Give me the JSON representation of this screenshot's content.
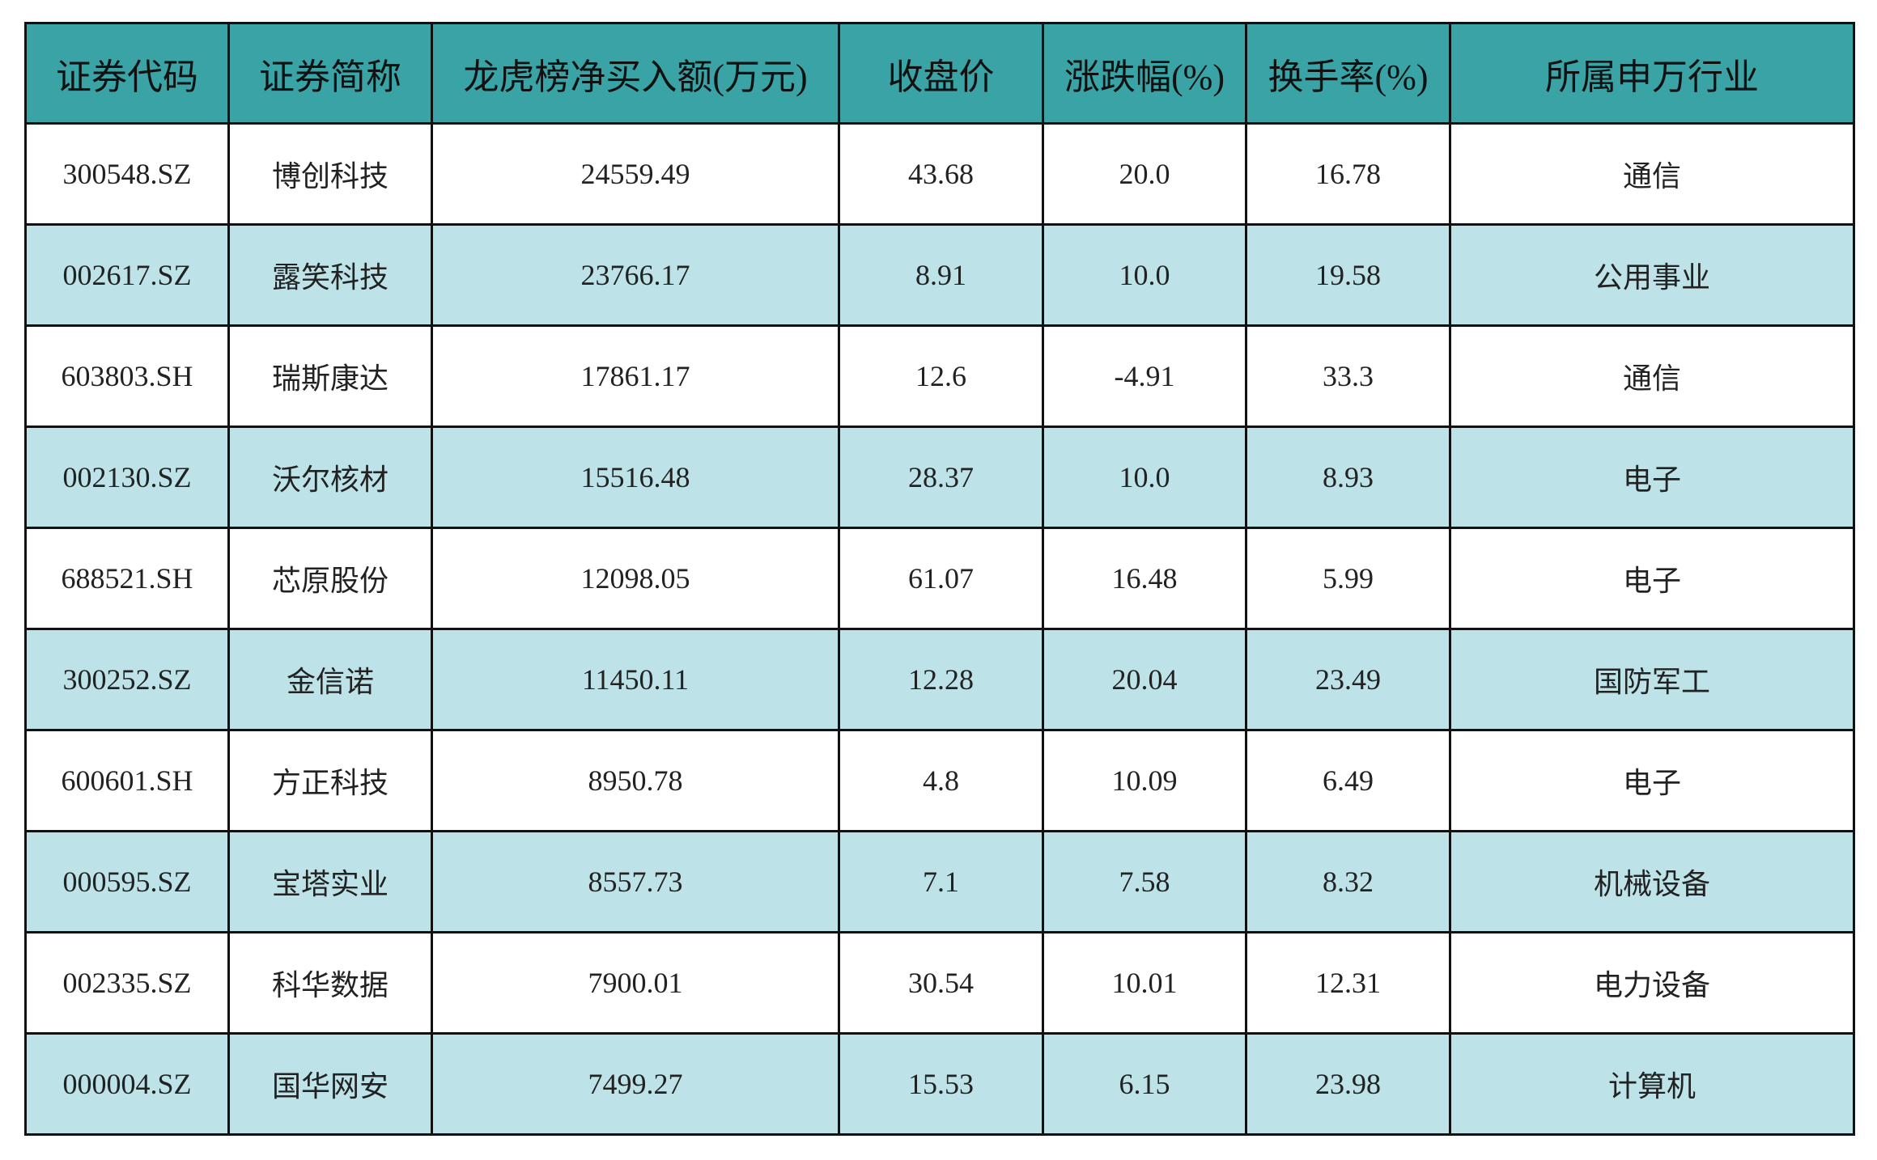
{
  "table": {
    "header": [
      "证券代码",
      "证券简称",
      "龙虎榜净买入额(万元)",
      "收盘价",
      "涨跌幅(%)",
      "换手率(%)",
      "所属申万行业"
    ],
    "rows": [
      [
        "300548.SZ",
        "博创科技",
        "24559.49",
        "43.68",
        "20.0",
        "16.78",
        "通信"
      ],
      [
        "002617.SZ",
        "露笑科技",
        "23766.17",
        "8.91",
        "10.0",
        "19.58",
        "公用事业"
      ],
      [
        "603803.SH",
        "瑞斯康达",
        "17861.17",
        "12.6",
        "-4.91",
        "33.3",
        "通信"
      ],
      [
        "002130.SZ",
        "沃尔核材",
        "15516.48",
        "28.37",
        "10.0",
        "8.93",
        "电子"
      ],
      [
        "688521.SH",
        "芯原股份",
        "12098.05",
        "61.07",
        "16.48",
        "5.99",
        "电子"
      ],
      [
        "300252.SZ",
        "金信诺",
        "11450.11",
        "12.28",
        "20.04",
        "23.49",
        "国防军工"
      ],
      [
        "600601.SH",
        "方正科技",
        "8950.78",
        "4.8",
        "10.09",
        "6.49",
        "电子"
      ],
      [
        "000595.SZ",
        "宝塔实业",
        "8557.73",
        "7.1",
        "7.58",
        "8.32",
        "机械设备"
      ],
      [
        "002335.SZ",
        "科华数据",
        "7900.01",
        "30.54",
        "10.01",
        "12.31",
        "电力设备"
      ],
      [
        "000004.SZ",
        "国华网安",
        "7499.27",
        "15.53",
        "6.15",
        "23.98",
        "计算机"
      ]
    ]
  }
}
